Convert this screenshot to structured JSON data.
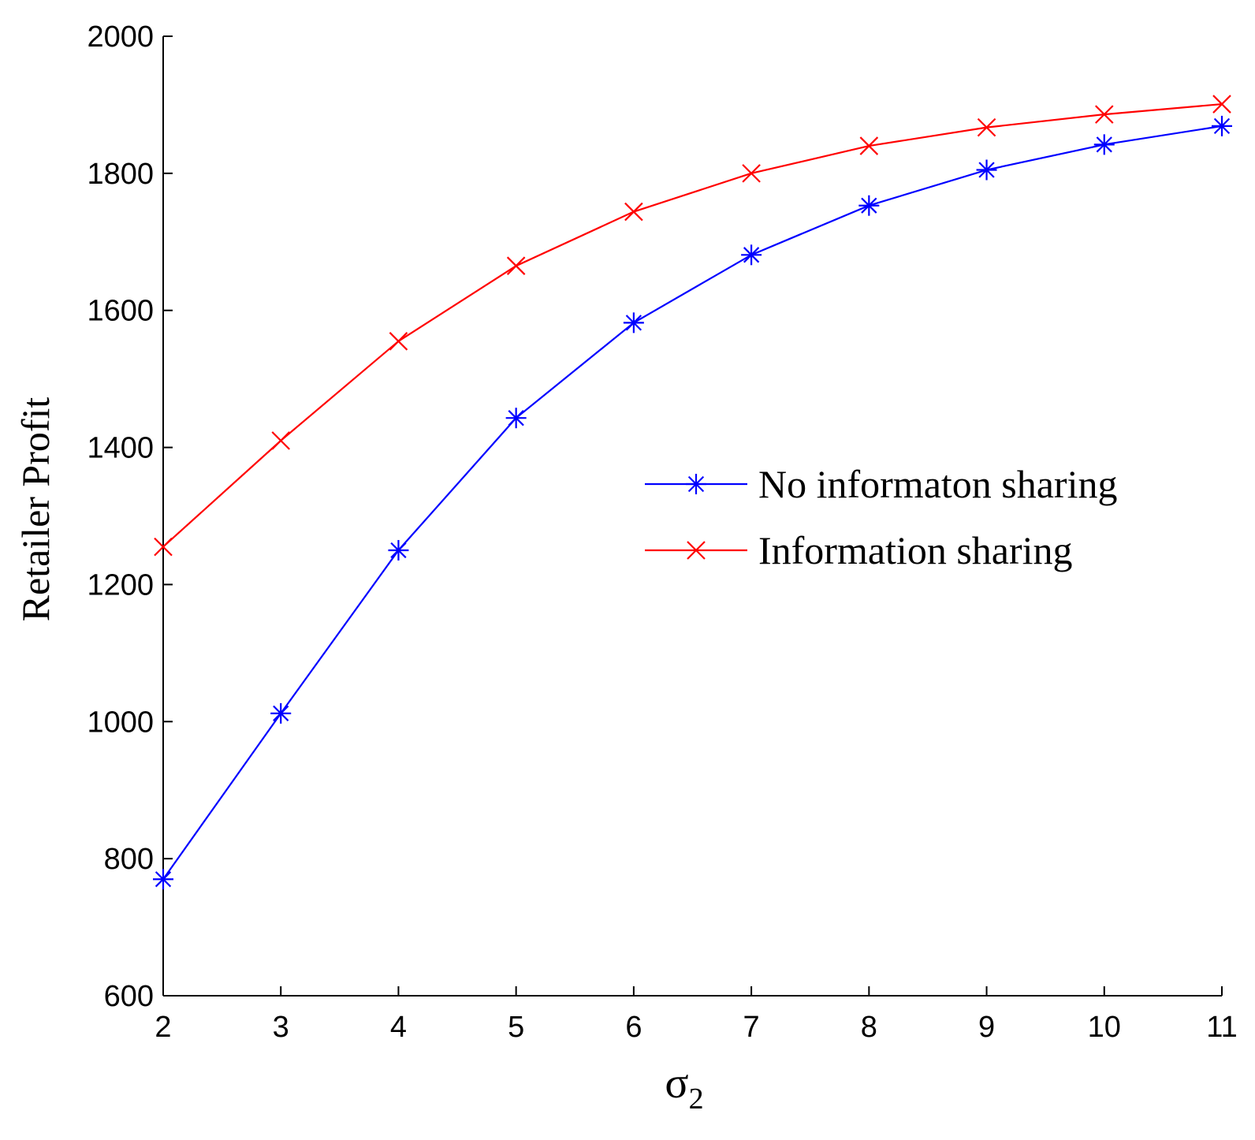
{
  "chart_data": {
    "type": "line",
    "xlabel": "σ",
    "xlabel_sub": "2",
    "ylabel": "Retailer Profit",
    "xlim": [
      2,
      11
    ],
    "ylim": [
      600,
      2000
    ],
    "x_ticks": [
      2,
      3,
      4,
      5,
      6,
      7,
      8,
      9,
      10,
      11
    ],
    "y_ticks": [
      600,
      800,
      1000,
      1200,
      1400,
      1600,
      1800,
      2000
    ],
    "grid": false,
    "legend_position": "center-right",
    "x": [
      2,
      3,
      4,
      5,
      6,
      7,
      8,
      9,
      10,
      11
    ],
    "series": [
      {
        "name": "No informaton sharing",
        "color": "#0000ff",
        "marker": "asterisk",
        "values": [
          770,
          1012,
          1250,
          1443,
          1582,
          1681,
          1753,
          1805,
          1842,
          1869
        ]
      },
      {
        "name": "Information sharing",
        "color": "#ff0000",
        "marker": "x",
        "values": [
          1255,
          1410,
          1555,
          1665,
          1744,
          1800,
          1840,
          1867,
          1886,
          1901
        ]
      }
    ]
  }
}
